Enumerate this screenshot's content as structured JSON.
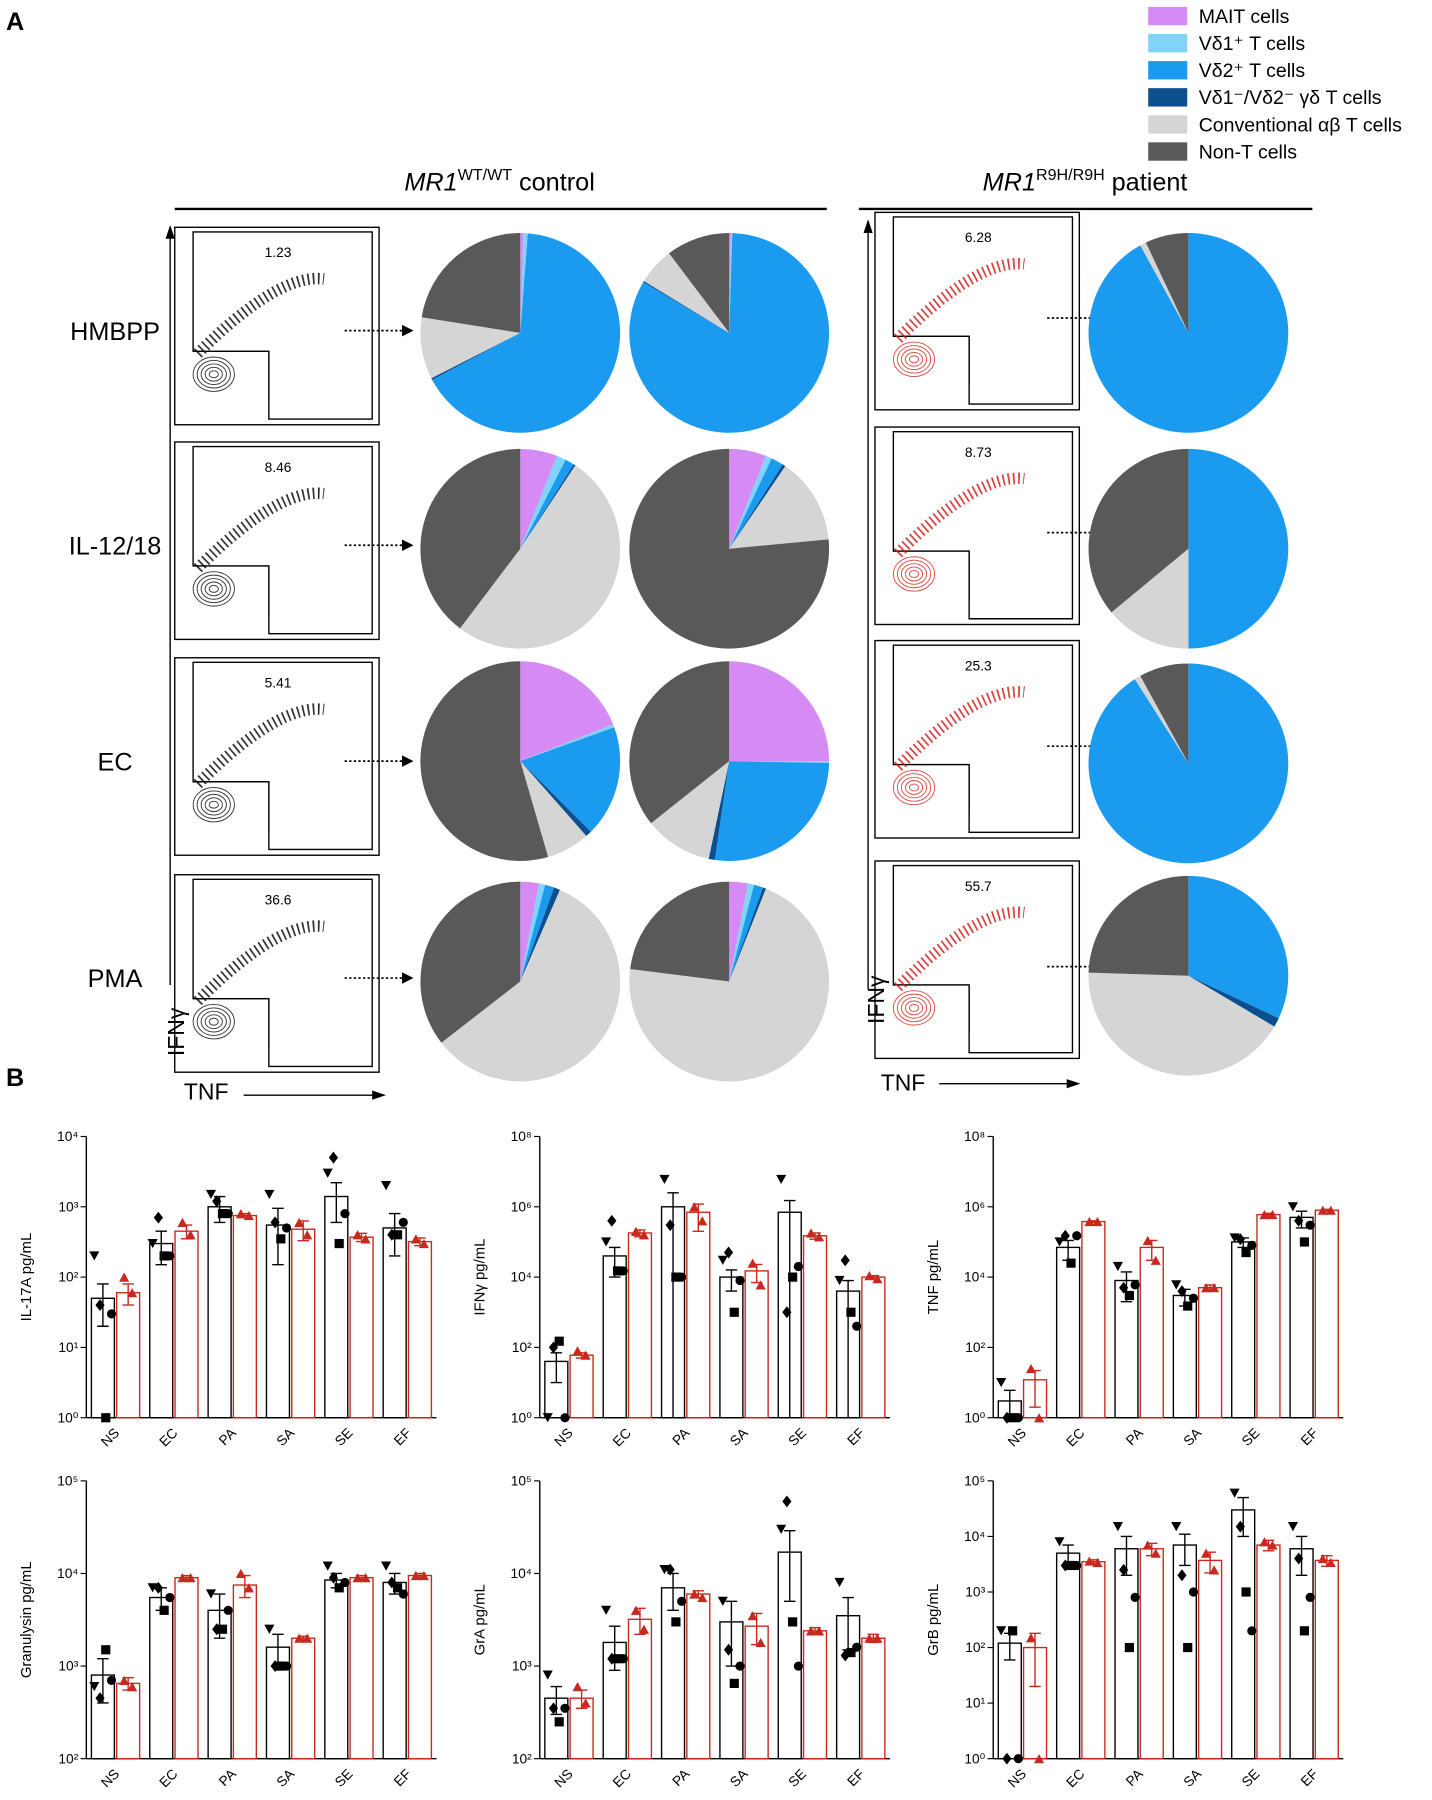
{
  "panel_labels": [
    "A",
    "B"
  ],
  "legend": [
    {
      "name": "MAIT cells",
      "color": "#d68af4"
    },
    {
      "name": "Vδ1⁺ T cells",
      "color": "#7fd4f8"
    },
    {
      "name": "Vδ2⁺ T cells",
      "color": "#1b9bf0"
    },
    {
      "name": "Vδ1⁻/Vδ2⁻ γδ T cells",
      "color": "#0b4f8e"
    },
    {
      "name": "Conventional αβ T cells",
      "color": "#d5d5d5"
    },
    {
      "name": "Non-T cells",
      "color": "#595959"
    }
  ],
  "groups": [
    {
      "gene": "MR1",
      "genotype": "WT/WT",
      "label": "control"
    },
    {
      "gene": "MR1",
      "genotype": "R9H/R9H",
      "label": "patient"
    }
  ],
  "stimuli": [
    "HMBPP",
    "IL-12/18",
    "EC",
    "PMA"
  ],
  "flow": {
    "x_label": "TNF",
    "y_label": "IFNγ",
    "control_gates": [
      1.23,
      8.46,
      5.41,
      36.6
    ],
    "patient_gates": [
      6.28,
      8.73,
      25.3,
      55.7
    ]
  },
  "chart_data": [
    {
      "type": "pie",
      "values": [
        0.5,
        0.7,
        66,
        0.3,
        10,
        22.5
      ]
    },
    {
      "type": "pie",
      "values": [
        0.3,
        0.2,
        83,
        0.2,
        6,
        10.3
      ]
    },
    {
      "type": "pie",
      "values": [
        0,
        0,
        92,
        0,
        1,
        7
      ]
    },
    {
      "type": "pie",
      "values": [
        6,
        1.5,
        1.5,
        0.3,
        51,
        39.7
      ]
    },
    {
      "type": "pie",
      "values": [
        6,
        1,
        2,
        0.5,
        14,
        76.5
      ]
    },
    {
      "type": "pie",
      "values": [
        0,
        0,
        50,
        0,
        14,
        36
      ]
    },
    {
      "type": "pie",
      "values": [
        19,
        0.5,
        18,
        1,
        7,
        54.5
      ]
    },
    {
      "type": "pie",
      "values": [
        25,
        0.3,
        27,
        1,
        11,
        35.7
      ]
    },
    {
      "type": "pie",
      "values": [
        0,
        0,
        91,
        0,
        1,
        8
      ]
    },
    {
      "type": "pie",
      "values": [
        3,
        1,
        1.5,
        1,
        58,
        35.5
      ]
    },
    {
      "type": "pie",
      "values": [
        3,
        1,
        1.5,
        0.5,
        71,
        23
      ]
    },
    {
      "type": "pie",
      "values": [
        0,
        0,
        32,
        1.5,
        42,
        24.5
      ]
    },
    {
      "type": "bar",
      "y_label": "IL-17A pg/mL",
      "log_scale": true,
      "categories": [
        "NS",
        "EC",
        "PA",
        "SA",
        "SE",
        "EF"
      ],
      "ylim": [
        1,
        10000
      ],
      "yticks": [
        {
          "value": 1,
          "label": "10⁰"
        },
        {
          "value": 10,
          "label": "10¹"
        },
        {
          "value": 100,
          "label": "10²"
        },
        {
          "value": 1000,
          "label": "10³"
        },
        {
          "value": 10000,
          "label": "10⁴"
        }
      ],
      "series": [
        {
          "color": "#000000",
          "markers": [
            "triangle-down",
            "diamond",
            "square",
            "circle"
          ],
          "values": [
            50,
            300,
            1000,
            550,
            1400,
            500
          ],
          "errors": [
            30,
            150,
            400,
            400,
            800,
            300
          ],
          "points": [
            [
              200,
              40,
              1,
              30
            ],
            [
              300,
              700,
              200,
              200
            ],
            [
              1500,
              1200,
              800,
              800
            ],
            [
              1500,
              600,
              350,
              500
            ],
            [
              3000,
              5000,
              300,
              800
            ],
            [
              2000,
              400,
              400,
              600
            ]
          ]
        },
        {
          "color": "#c8281e",
          "markers": [
            "triangle"
          ],
          "values": [
            60,
            450,
            750,
            480,
            370,
            320
          ],
          "errors": [
            20,
            100,
            50,
            150,
            50,
            40
          ],
          "points": [
            [
              100,
              60
            ],
            [
              600,
              400
            ],
            [
              800,
              750
            ],
            [
              600,
              400
            ],
            [
              400,
              350
            ],
            [
              350,
              300
            ]
          ]
        }
      ]
    },
    {
      "type": "bar",
      "y_label": "IFNγ pg/mL",
      "log_scale": true,
      "categories": [
        "NS",
        "EC",
        "PA",
        "SA",
        "SE",
        "EF"
      ],
      "ylim": [
        1,
        100000000
      ],
      "yticks": [
        {
          "value": 1,
          "label": "10⁰"
        },
        {
          "value": 100,
          "label": "10²"
        },
        {
          "value": 10000,
          "label": "10⁴"
        },
        {
          "value": 1000000,
          "label": "10⁶"
        },
        {
          "value": 100000000,
          "label": "10⁸"
        }
      ],
      "series": [
        {
          "color": "#000000",
          "markers": [
            "triangle-down",
            "diamond",
            "square",
            "circle"
          ],
          "values": [
            40,
            40000,
            1000000,
            10000,
            700000,
            4000
          ],
          "errors": [
            30,
            30000,
            1500000,
            6000,
            800000,
            4000
          ],
          "points": [
            [
              1,
              100,
              150,
              1
            ],
            [
              100000,
              400000,
              15000,
              15000
            ],
            [
              6000000,
              300000,
              10000,
              10000
            ],
            [
              30000,
              50000,
              1000,
              8000
            ],
            [
              6000000,
              1000,
              10000,
              20000
            ],
            [
              8000,
              30000,
              1000,
              400
            ]
          ]
        },
        {
          "color": "#c8281e",
          "markers": [
            "triangle"
          ],
          "values": [
            60,
            180000,
            700000,
            15000,
            150000,
            10000
          ],
          "errors": [
            10,
            40000,
            500000,
            8000,
            30000,
            1000
          ],
          "points": [
            [
              80,
              60
            ],
            [
              200000,
              160000
            ],
            [
              1000000,
              400000
            ],
            [
              25000,
              6000
            ],
            [
              180000,
              140000
            ],
            [
              11000,
              9000
            ]
          ]
        }
      ]
    },
    {
      "type": "bar",
      "y_label": "TNF pg/mL",
      "log_scale": true,
      "categories": [
        "NS",
        "EC",
        "PA",
        "SA",
        "SE",
        "EF"
      ],
      "ylim": [
        1,
        100000000
      ],
      "yticks": [
        {
          "value": 1,
          "label": "10⁰"
        },
        {
          "value": 100,
          "label": "10²"
        },
        {
          "value": 10000,
          "label": "10⁴"
        },
        {
          "value": 1000000,
          "label": "10⁶"
        },
        {
          "value": 100000000,
          "label": "10⁸"
        }
      ],
      "series": [
        {
          "color": "#000000",
          "markers": [
            "triangle-down",
            "diamond",
            "square",
            "circle"
          ],
          "values": [
            3,
            70000,
            8000,
            3000,
            100000,
            500000
          ],
          "errors": [
            3,
            40000,
            6000,
            1500,
            30000,
            250000
          ],
          "points": [
            [
              10,
              1,
              1,
              1
            ],
            [
              100000,
              150000,
              25000,
              150000
            ],
            [
              20000,
              5000,
              3000,
              6000
            ],
            [
              6000,
              4000,
              1500,
              2500
            ],
            [
              130000,
              120000,
              50000,
              80000
            ],
            [
              1000000,
              400000,
              100000,
              300000
            ]
          ]
        },
        {
          "color": "#c8281e",
          "markers": [
            "triangle"
          ],
          "values": [
            12,
            380000,
            70000,
            5000,
            600000,
            800000
          ],
          "errors": [
            10,
            20000,
            40000,
            1000,
            50000,
            50000
          ],
          "points": [
            [
              25,
              1
            ],
            [
              380000,
              380000
            ],
            [
              110000,
              30000
            ],
            [
              5000,
              5000
            ],
            [
              600000,
              600000
            ],
            [
              800000,
              800000
            ]
          ]
        }
      ]
    },
    {
      "type": "bar",
      "y_label": "Granulysin pg/mL",
      "log_scale": true,
      "categories": [
        "NS",
        "EC",
        "PA",
        "SA",
        "SE",
        "EF"
      ],
      "ylim": [
        100,
        100000
      ],
      "yticks": [
        {
          "value": 100,
          "label": "10²"
        },
        {
          "value": 1000,
          "label": "10³"
        },
        {
          "value": 10000,
          "label": "10⁴"
        },
        {
          "value": 100000,
          "label": "10⁵"
        }
      ],
      "series": [
        {
          "color": "#000000",
          "markers": [
            "triangle-down",
            "diamond",
            "square",
            "circle"
          ],
          "values": [
            800,
            5500,
            4000,
            1600,
            8500,
            8000
          ],
          "errors": [
            400,
            1500,
            2000,
            600,
            1500,
            2000
          ],
          "points": [
            [
              600,
              450,
              1500,
              700
            ],
            [
              7000,
              7000,
              4000,
              5500
            ],
            [
              6000,
              2500,
              2500,
              4000
            ],
            [
              2500,
              1000,
              1000,
              1000
            ],
            [
              12000,
              9000,
              7000,
              8000
            ],
            [
              12000,
              8000,
              7000,
              6000
            ]
          ]
        },
        {
          "color": "#c8281e",
          "markers": [
            "triangle"
          ],
          "values": [
            650,
            9000,
            7500,
            2000,
            9000,
            9500
          ],
          "errors": [
            100,
            500,
            2000,
            100,
            500,
            500
          ],
          "points": [
            [
              700,
              600
            ],
            [
              9000,
              9000
            ],
            [
              10000,
              7000
            ],
            [
              2000,
              2000
            ],
            [
              9000,
              9000
            ],
            [
              9500,
              9500
            ]
          ]
        }
      ]
    },
    {
      "type": "bar",
      "y_label": "GrA pg/mL",
      "log_scale": true,
      "categories": [
        "NS",
        "EC",
        "PA",
        "SA",
        "SE",
        "EF"
      ],
      "ylim": [
        100,
        100000
      ],
      "yticks": [
        {
          "value": 100,
          "label": "10²"
        },
        {
          "value": 1000,
          "label": "10³"
        },
        {
          "value": 10000,
          "label": "10⁴"
        },
        {
          "value": 100000,
          "label": "10⁵"
        }
      ],
      "series": [
        {
          "color": "#000000",
          "markers": [
            "triangle-down",
            "diamond",
            "square",
            "circle"
          ],
          "values": [
            450,
            1800,
            7000,
            3000,
            17000,
            3500
          ],
          "errors": [
            150,
            900,
            3000,
            2000,
            12000,
            2000
          ],
          "points": [
            [
              800,
              350,
              250,
              350
            ],
            [
              4000,
              1200,
              1200,
              1200
            ],
            [
              11000,
              11000,
              3000,
              5000
            ],
            [
              5000,
              1500,
              650,
              1000
            ],
            [
              30000,
              60000,
              3000,
              1000
            ],
            [
              8000,
              1300,
              1400,
              1600
            ]
          ]
        },
        {
          "color": "#c8281e",
          "markers": [
            "triangle"
          ],
          "values": [
            450,
            3200,
            6000,
            2700,
            2400,
            2000
          ],
          "errors": [
            100,
            1000,
            500,
            1000,
            200,
            200
          ],
          "points": [
            [
              600,
              400
            ],
            [
              4000,
              2500
            ],
            [
              6000,
              5500
            ],
            [
              3500,
              1800
            ],
            [
              2400,
              2400
            ],
            [
              2000,
              2000
            ]
          ]
        }
      ]
    },
    {
      "type": "bar",
      "y_label": "GrB pg/mL",
      "log_scale": true,
      "categories": [
        "NS",
        "EC",
        "PA",
        "SA",
        "SE",
        "EF"
      ],
      "ylim": [
        1,
        100000
      ],
      "yticks": [
        {
          "value": 1,
          "label": "10⁰"
        },
        {
          "value": 10,
          "label": "10¹"
        },
        {
          "value": 100,
          "label": "10²"
        },
        {
          "value": 1000,
          "label": "10³"
        },
        {
          "value": 10000,
          "label": "10⁴"
        },
        {
          "value": 100000,
          "label": "10⁵"
        }
      ],
      "series": [
        {
          "color": "#000000",
          "markers": [
            "triangle-down",
            "diamond",
            "square",
            "circle"
          ],
          "values": [
            120,
            5000,
            6000,
            7000,
            30000,
            6000
          ],
          "errors": [
            60,
            2000,
            4000,
            4000,
            20000,
            4000
          ],
          "points": [
            [
              200,
              1,
              200,
              1
            ],
            [
              8000,
              3000,
              3000,
              3000
            ],
            [
              15000,
              2500,
              100,
              800
            ],
            [
              15000,
              2000,
              100,
              1000
            ],
            [
              60000,
              15000,
              1000,
              200
            ],
            [
              15000,
              4000,
              200,
              800
            ]
          ]
        },
        {
          "color": "#c8281e",
          "markers": [
            "triangle"
          ],
          "values": [
            100,
            3500,
            6000,
            3700,
            7000,
            3700
          ],
          "errors": [
            80,
            300,
            1500,
            1500,
            1500,
            800
          ],
          "points": [
            [
              150,
              1
            ],
            [
              3600,
              3400
            ],
            [
              7000,
              5000
            ],
            [
              5000,
              2500
            ],
            [
              8000,
              7000
            ],
            [
              4000,
              3400
            ]
          ]
        }
      ]
    }
  ]
}
